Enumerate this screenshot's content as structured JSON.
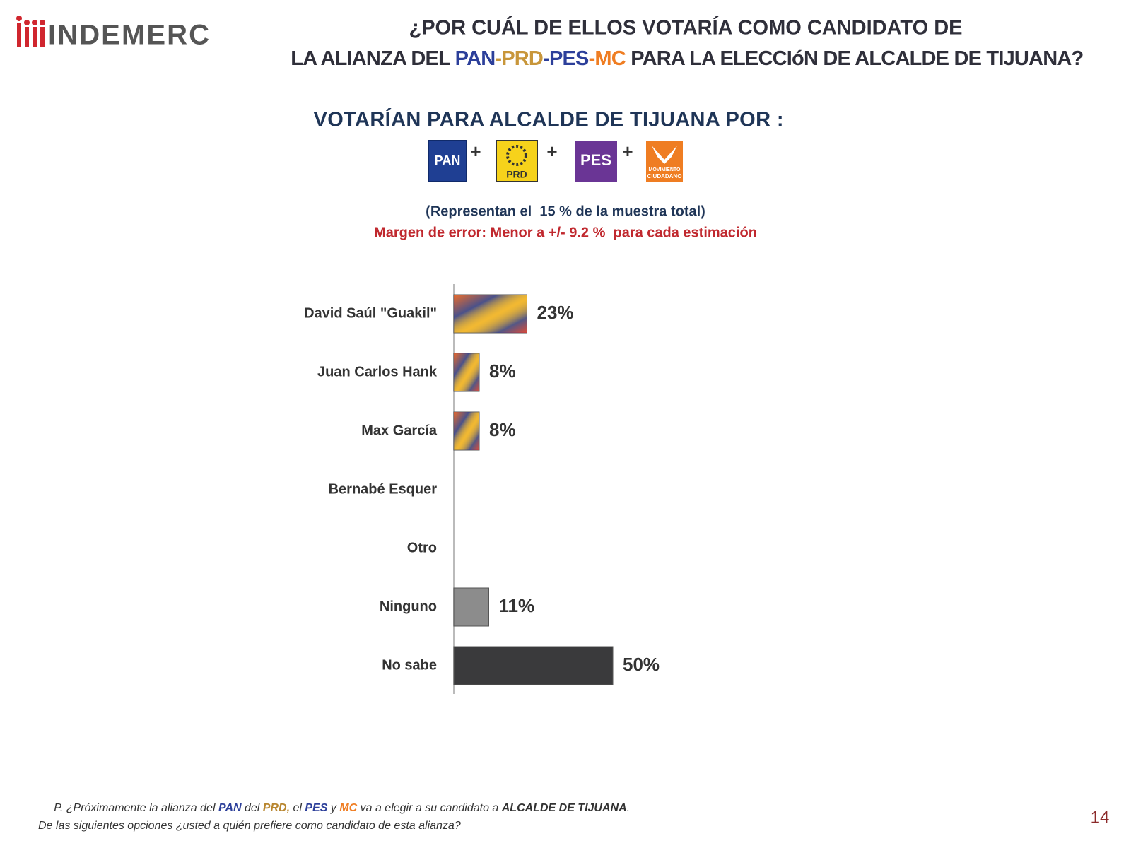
{
  "logo": "INDEMERC",
  "title": {
    "line1": "¿POR CUÁL DE ELLOS VOTARÍA COMO CANDIDATO DE",
    "line2": [
      "LA ALIANZA DEL ",
      "PAN",
      "-",
      "PRD",
      "-",
      "PES",
      "-",
      "MC",
      " PARA LA ELECCIóN DE ALCALDE DE TIJUANA?"
    ]
  },
  "subtitle": "VOTARÍAN PARA ALCALDE DE TIJUANA POR :",
  "logos": {
    "pan": "PAN",
    "prd": "PRD",
    "pes": "PES",
    "mc": [
      "MOVIMIENTO",
      "CIUDADANO"
    ],
    "plus": "+"
  },
  "notes": {
    "sample": "(Representan el  15 % de la muestra total)",
    "error": "Margen de error: Menor a +/- 9.2 %  para cada estimación"
  },
  "chart_data": {
    "type": "bar",
    "orientation": "horizontal",
    "categories": [
      "David Saúl \"Guakil\"",
      "Juan Carlos Hank",
      "Max García",
      "Bernabé Esquer",
      "Otro",
      "Ninguno",
      "No sabe"
    ],
    "values": [
      23,
      8,
      8,
      null,
      null,
      11,
      50
    ],
    "value_labels": [
      "23%",
      "8%",
      "8%",
      null,
      null,
      "11%",
      "50%"
    ],
    "colors": [
      "#f2b632",
      "#f2b632",
      "#f2b632",
      "#f2b632",
      "#f2b632",
      "#8c8c8c",
      "#3a3a3c"
    ]
  },
  "footer": {
    "line1": [
      "P. ¿Próximamente la alianza del ",
      "PAN",
      " del ",
      "PRD,",
      " el ",
      "PES",
      " y ",
      "MC",
      " va a elegir a su candidato a ",
      "ALCALDE DE TIJUANA",
      "."
    ],
    "line2": "De las siguientes opciones ¿usted a quién prefiere como candidato de esta alianza?"
  },
  "page_number": "14"
}
